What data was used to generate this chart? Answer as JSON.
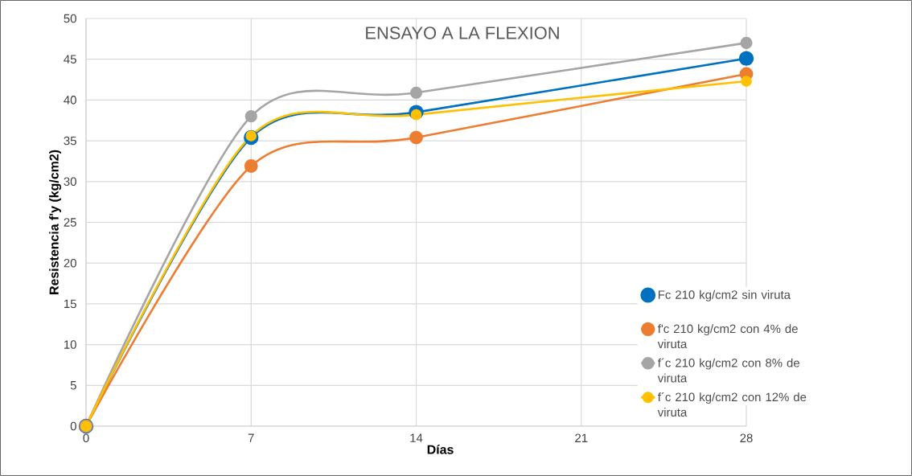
{
  "chart_data": {
    "type": "line",
    "title": "ENSAYO A LA FLEXION",
    "xlabel": "Días",
    "ylabel": "Resistencia f'y (kg/cm2)",
    "x": [
      0,
      7,
      14,
      28
    ],
    "xlim": [
      0,
      28
    ],
    "xticks": [
      0,
      7,
      14,
      21,
      28
    ],
    "ylim": [
      0,
      50
    ],
    "yticks": [
      0,
      5,
      10,
      15,
      20,
      25,
      30,
      35,
      40,
      45,
      50
    ],
    "grid": true,
    "legend": "right",
    "marker": "circle",
    "series": [
      {
        "name": "Fc 210 kg/cm2 sin viruta",
        "color": "#0070c0",
        "values": [
          0,
          35.4,
          38.5,
          45.1
        ]
      },
      {
        "name": "f'c 210 kg/cm2 con 4% de viruta",
        "color": "#ed7d31",
        "values": [
          0,
          31.9,
          35.4,
          43.2
        ]
      },
      {
        "name": "f´c 210 kg/cm2 con 8% de viruta",
        "color": "#a5a5a5",
        "values": [
          0,
          38.0,
          40.9,
          47.0
        ]
      },
      {
        "name": "f´c 210 kg/cm2 con 12% de viruta",
        "color": "#ffc000",
        "values": [
          0,
          35.6,
          38.2,
          42.3
        ]
      }
    ]
  }
}
